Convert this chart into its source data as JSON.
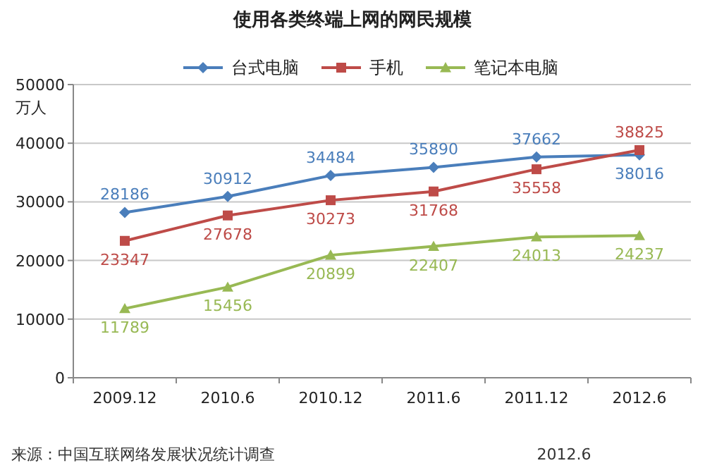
{
  "chart_data": {
    "type": "line",
    "title": "使用各类终端上网的网民规模",
    "ylabel": "万人",
    "categories": [
      "2009.12",
      "2010.6",
      "2010.12",
      "2011.6",
      "2011.12",
      "2012.6"
    ],
    "series": [
      {
        "name": "台式电脑",
        "color": "#4a7ebb",
        "marker": "diamond",
        "values": [
          28186,
          30912,
          34484,
          35890,
          37662,
          38016
        ]
      },
      {
        "name": "手机",
        "color": "#be4b48",
        "marker": "square",
        "values": [
          23347,
          27678,
          30273,
          31768,
          35558,
          38825
        ]
      },
      {
        "name": "笔记本电脑",
        "color": "#98b954",
        "marker": "triangle",
        "values": [
          11789,
          15456,
          20899,
          22407,
          24013,
          24237
        ]
      }
    ],
    "ylim": [
      0,
      50000
    ],
    "yticks": [
      0,
      10000,
      20000,
      30000,
      40000,
      50000
    ],
    "grid": "y",
    "legend": "top",
    "data_labels": true,
    "annotations": [
      "来源：中国互联网络发展状况统计调查",
      "2012.6"
    ]
  }
}
